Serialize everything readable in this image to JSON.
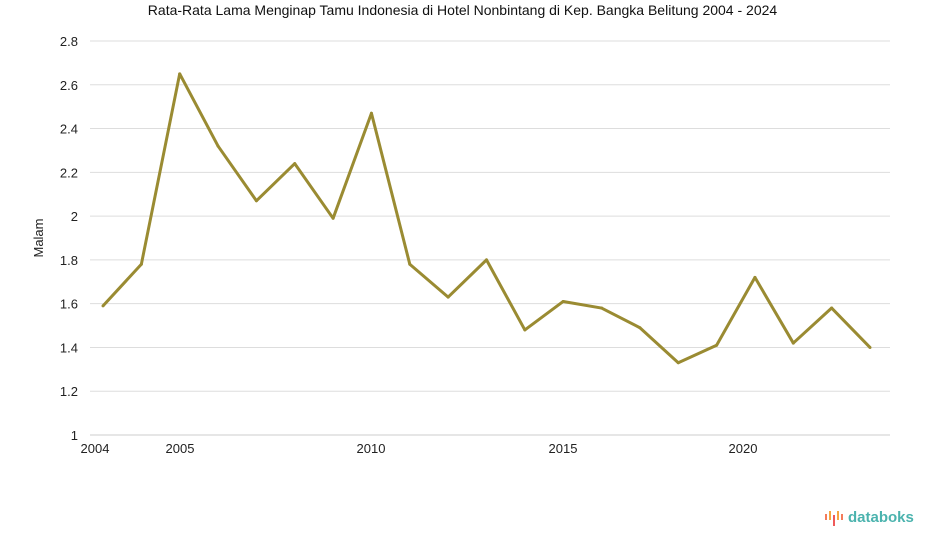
{
  "chart_data": {
    "type": "line",
    "title": "Rata-Rata Lama Menginap Tamu Indonesia di Hotel Nonbintang di Kep. Bangka Belitung 2004 - 2024",
    "xlabel": "",
    "ylabel": "Malam",
    "ylim": [
      1,
      2.8
    ],
    "yticks": [
      "1",
      "1.2",
      "1.4",
      "1.6",
      "1.8",
      "2",
      "2.2",
      "2.4",
      "2.6",
      "2.8"
    ],
    "xtick_labels": [
      "2004",
      "2005",
      "2010",
      "2015",
      "2020"
    ],
    "x": [
      2004,
      2005,
      2006,
      2007,
      2008,
      2009,
      2010,
      2011,
      2012,
      2013,
      2014,
      2015,
      2016,
      2017,
      2018,
      2019,
      2020,
      2021,
      2022,
      2023,
      2024
    ],
    "series": [
      {
        "name": "Malam",
        "values": [
          1.59,
          1.78,
          2.65,
          2.32,
          2.07,
          2.24,
          1.99,
          2.47,
          1.78,
          1.63,
          1.8,
          1.48,
          1.61,
          1.58,
          1.49,
          1.33,
          1.41,
          1.72,
          1.42,
          1.58,
          1.4
        ],
        "color": "#9a8b32"
      }
    ],
    "grid": true,
    "legend": "none"
  },
  "brand": {
    "name": "databoks",
    "color": "#4bb3ae"
  }
}
